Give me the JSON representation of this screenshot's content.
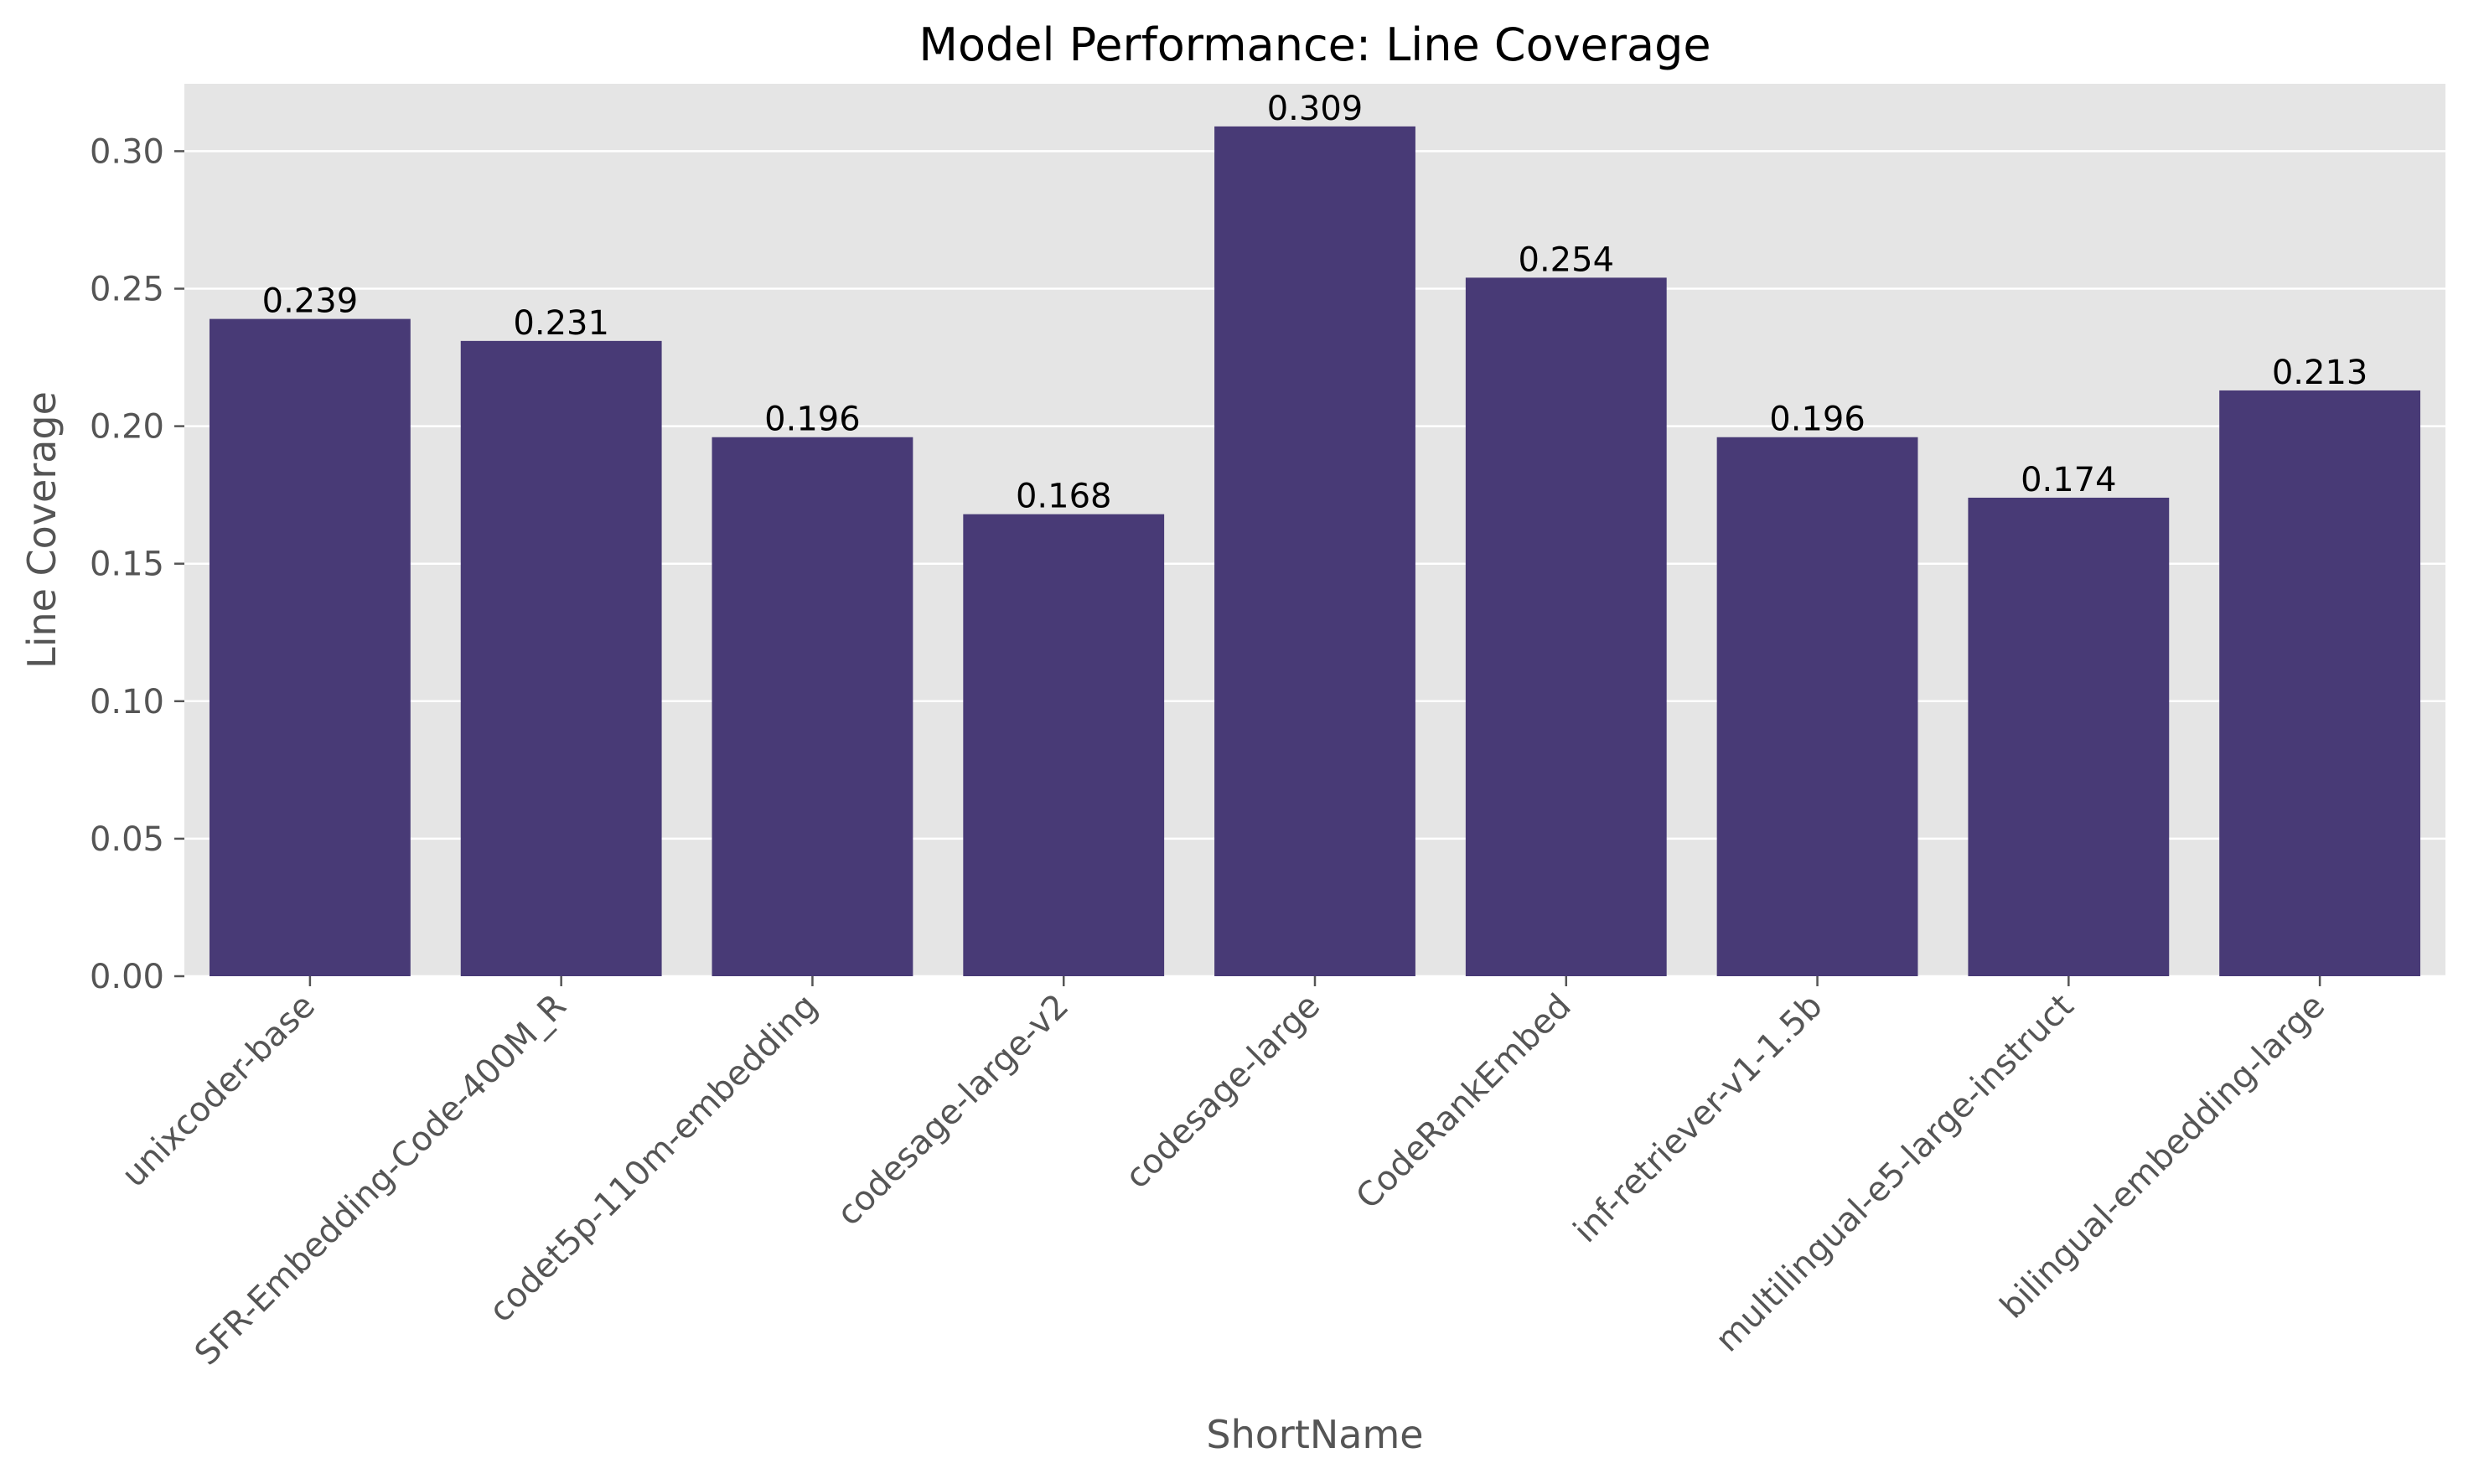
{
  "chart_data": {
    "type": "bar",
    "title": "Model Performance: Line Coverage",
    "xlabel": "ShortName",
    "ylabel": "Line Coverage",
    "categories": [
      "unixcoder-base",
      "SFR-Embedding-Code-400M_R",
      "codet5p-110m-embedding",
      "codesage-large-v2",
      "codesage-large",
      "CodeRankEmbed",
      "inf-retriever-v1-1.5b",
      "multilingual-e5-large-instruct",
      "bilingual-embedding-large"
    ],
    "values": [
      0.239,
      0.231,
      0.196,
      0.168,
      0.309,
      0.254,
      0.196,
      0.174,
      0.213
    ],
    "value_labels": [
      "0.239",
      "0.231",
      "0.196",
      "0.168",
      "0.309",
      "0.254",
      "0.196",
      "0.174",
      "0.213"
    ],
    "yticks": [
      0.0,
      0.05,
      0.1,
      0.15,
      0.2,
      0.25,
      0.3
    ],
    "ytick_labels": [
      "0.00",
      "0.05",
      "0.10",
      "0.15",
      "0.20",
      "0.25",
      "0.30"
    ],
    "ylim": [
      0,
      0.3245
    ],
    "grid": true,
    "colors": {
      "bar": "#483a76",
      "plot_background": "#e5e5e5",
      "grid": "#ffffff",
      "text": "#555555",
      "title": "#000000"
    }
  }
}
